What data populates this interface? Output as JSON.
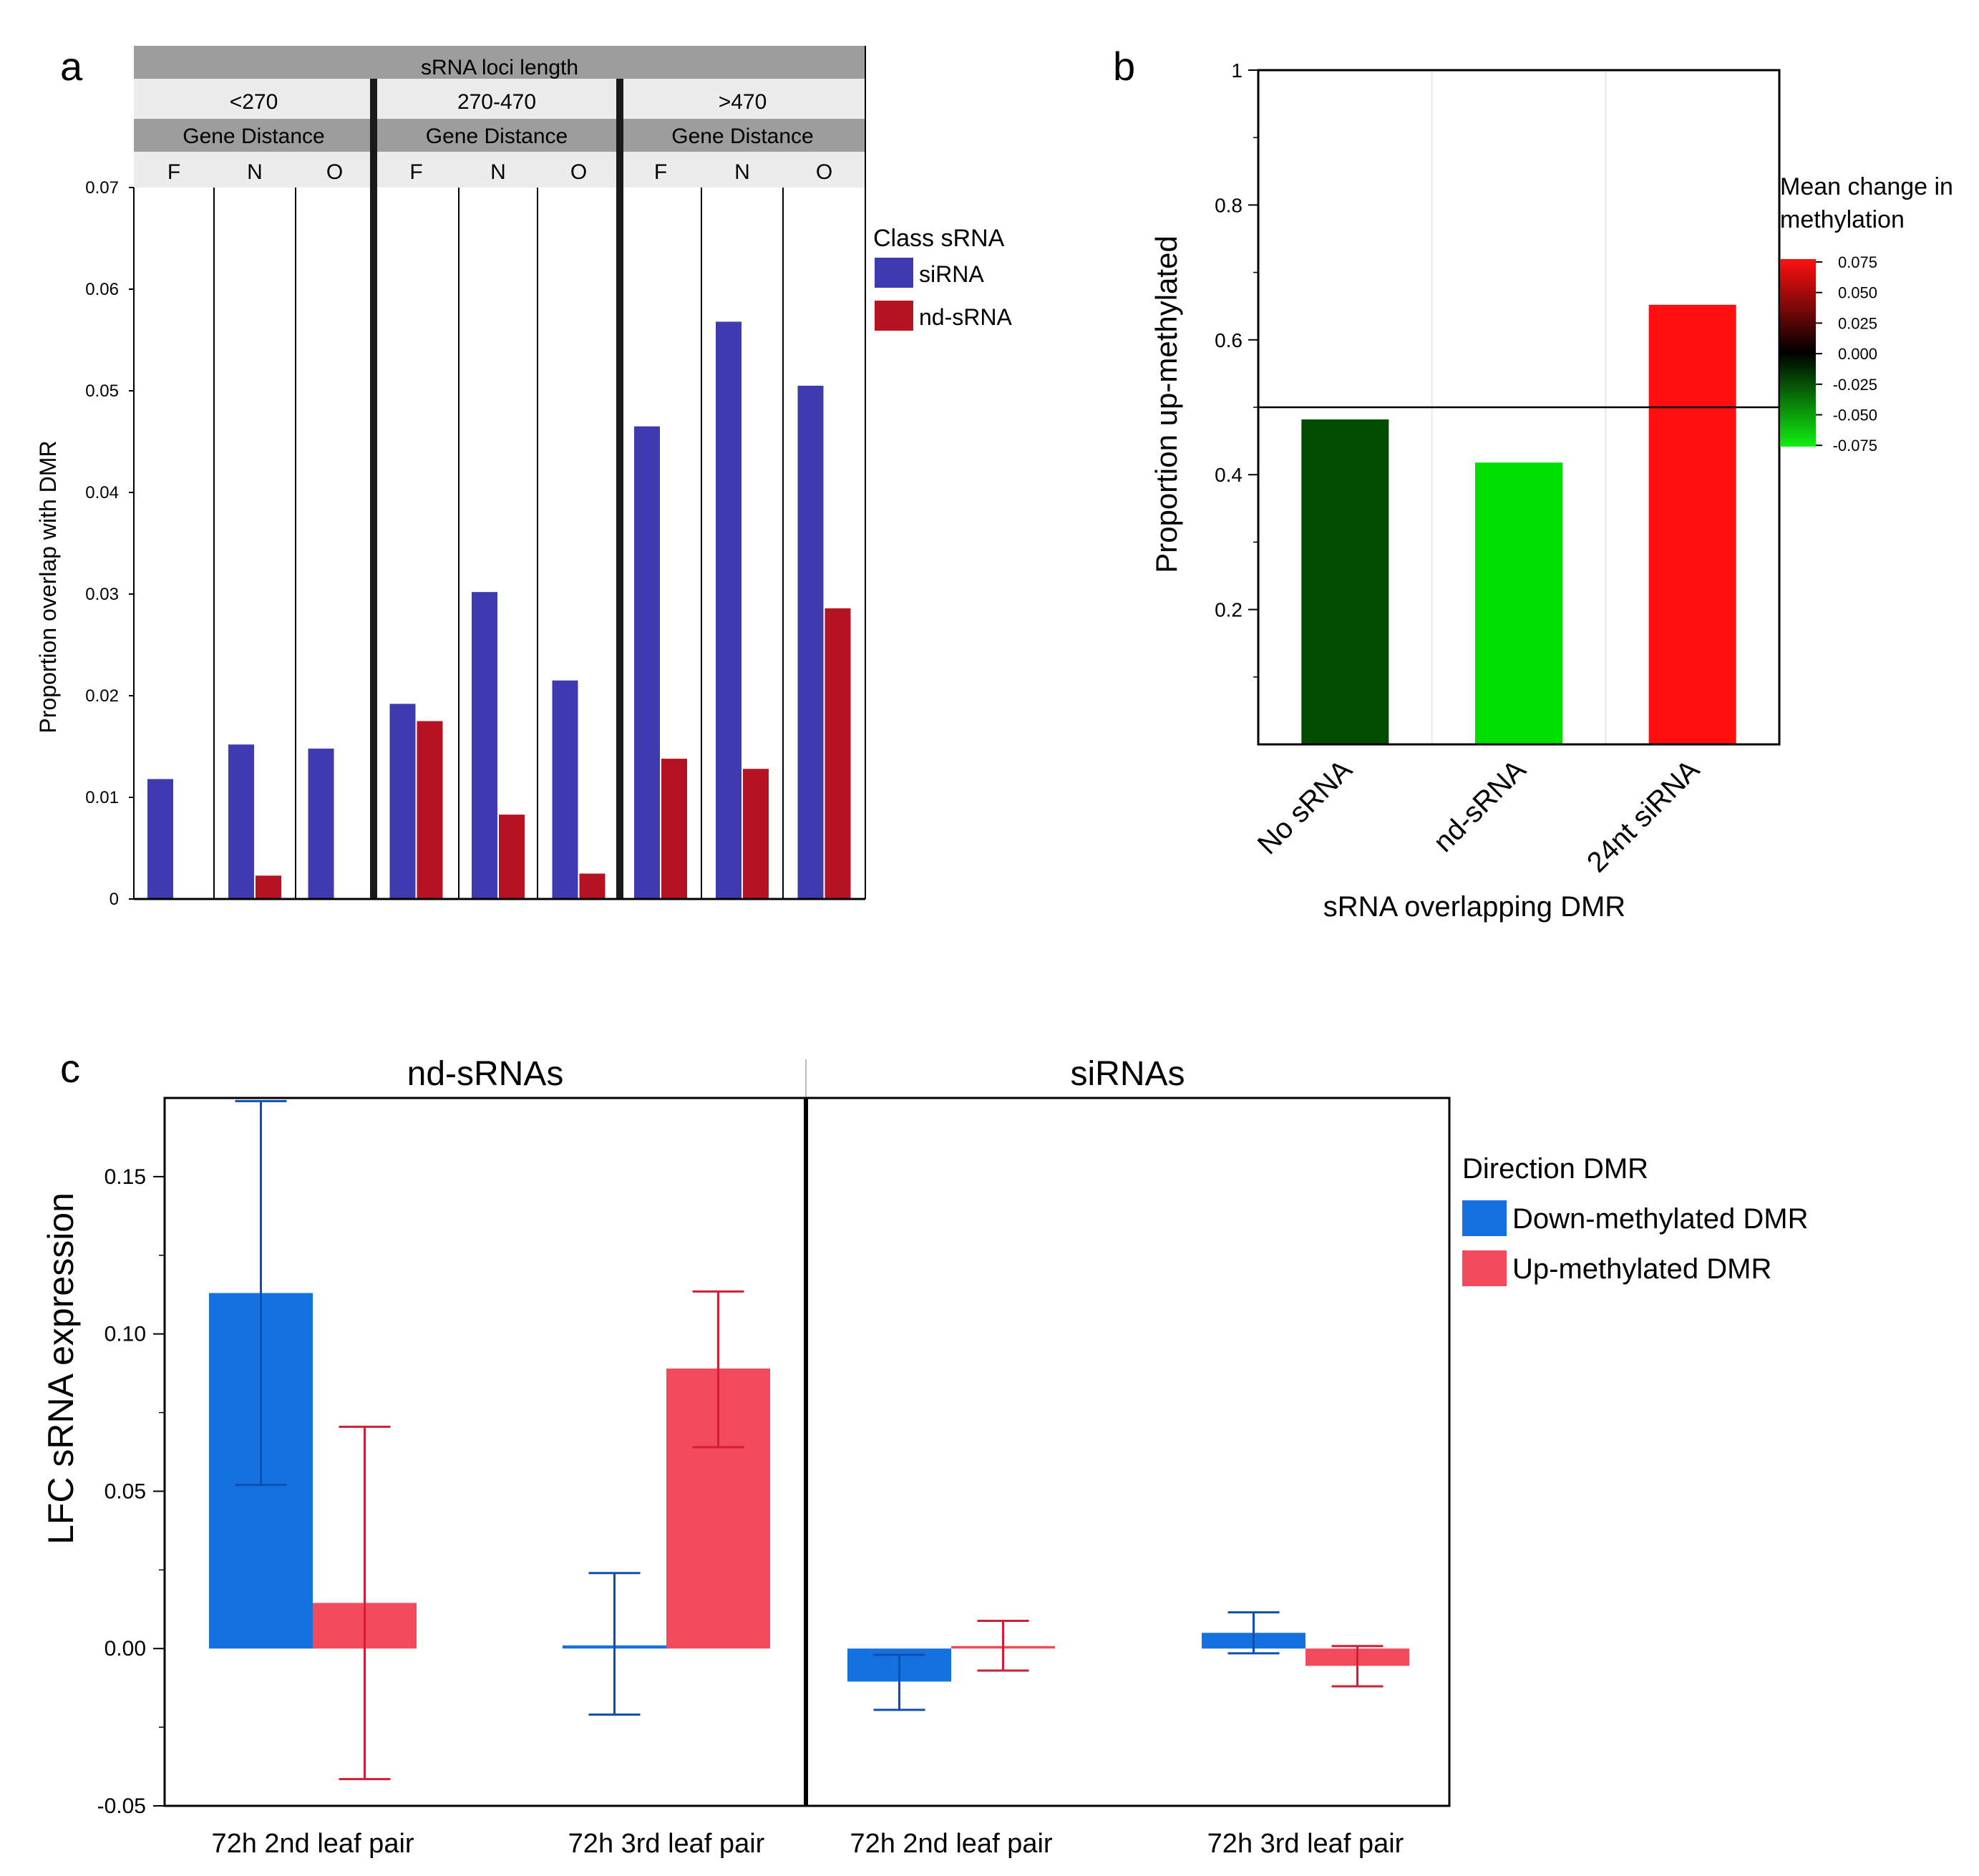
{
  "panel_letters": {
    "a": "a",
    "b": "b",
    "c": "c"
  },
  "colors": {
    "siRNA": "#3e3bb0",
    "nd_sRNA": "#b51321",
    "down": "#1671e0",
    "up": "#f24a5a",
    "down_err": "#0d4fb0",
    "up_err": "#d21e35",
    "header_dark": "#9d9d9d",
    "header_light": "#ececec"
  },
  "chart_data": [
    {
      "id": "a",
      "type": "bar",
      "title": "sRNA loci length",
      "length_groups": [
        "<270",
        "270-470",
        ">470"
      ],
      "sub_header": "Gene Distance",
      "distance_categories": [
        "F",
        "N",
        "O"
      ],
      "ylabel": "Proportion overlap with DMR",
      "ylim": [
        0,
        0.07
      ],
      "yticks": [
        "0",
        "0.01",
        "0.02",
        "0.03",
        "0.04",
        "0.05",
        "0.06",
        "0.07"
      ],
      "legend_title": "Class sRNA",
      "series": [
        {
          "name": "siRNA",
          "values": [
            0.0118,
            0.0152,
            0.0148,
            0.0192,
            0.0302,
            0.0215,
            0.0465,
            0.0568,
            0.0505
          ]
        },
        {
          "name": "nd-sRNA",
          "values": [
            0.0,
            0.0023,
            0.0,
            0.0175,
            0.0083,
            0.0025,
            0.0138,
            0.0128,
            0.0286
          ]
        }
      ]
    },
    {
      "id": "b",
      "type": "bar",
      "categories": [
        "No sRNA",
        "nd-sRNA",
        "24nt siRNA"
      ],
      "values": [
        0.482,
        0.418,
        0.652
      ],
      "bar_colors": [
        "#004d00",
        "#00e000",
        "#ff0f0f"
      ],
      "color_values": [
        -0.03,
        -0.07,
        0.075
      ],
      "reference_line": 0.5,
      "ylabel": "Proportion up-methylated",
      "xlabel": "sRNA overlapping DMR",
      "ylim": [
        0,
        1
      ],
      "yticks": [
        "0.2",
        "0.4",
        "0.6",
        "0.8",
        "1"
      ],
      "colorbar": {
        "title_line1": "Mean change in",
        "title_line2": "methylation",
        "ticks": [
          "0.075",
          "0.050",
          "0.025",
          "0.000",
          "-0.025",
          "-0.050",
          "-0.075"
        ]
      }
    },
    {
      "id": "c",
      "type": "bar",
      "facets": [
        "nd-sRNAs",
        "siRNAs"
      ],
      "categories": [
        "72h 2nd leaf pair",
        "72h 3rd leaf pair"
      ],
      "ylabel": "LFC sRNA expression",
      "ylim": [
        -0.05,
        0.175
      ],
      "yticks": [
        "-0.05",
        "0.00",
        "0.05",
        "0.10",
        "0.15"
      ],
      "legend_title": "Direction DMR",
      "series": [
        {
          "name": "Down-methylated DMR",
          "values": [
            [
              0.113,
              0.001
            ],
            [
              -0.0105,
              0.005
            ]
          ],
          "err_low": [
            [
              0.052,
              -0.021
            ],
            [
              -0.0195,
              -0.0015
            ]
          ],
          "err_high": [
            [
              0.174,
              0.024
            ],
            [
              -0.002,
              0.0115
            ]
          ]
        },
        {
          "name": "Up-methylated DMR",
          "values": [
            [
              0.0145,
              0.089
            ],
            [
              0.0008,
              -0.0055
            ]
          ],
          "err_low": [
            [
              -0.0415,
              0.064
            ],
            [
              -0.007,
              -0.012
            ]
          ],
          "err_high": [
            [
              0.0705,
              0.1135
            ],
            [
              0.0088,
              0.0008
            ]
          ]
        }
      ]
    }
  ]
}
